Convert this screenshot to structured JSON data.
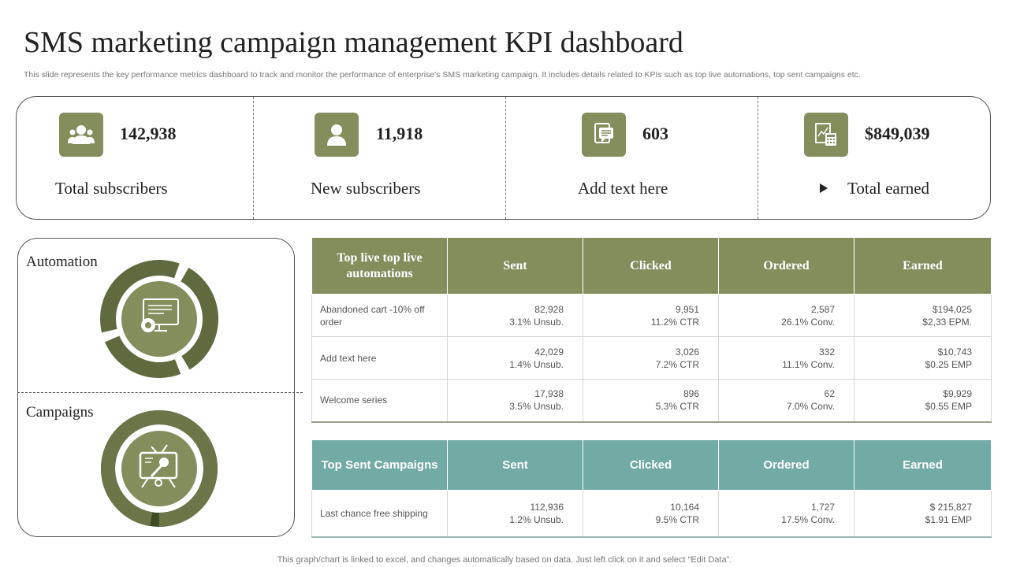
{
  "header": {
    "title": "SMS marketing campaign management KPI dashboard",
    "subtitle": "This slide represents the key performance metrics dashboard to track and monitor the performance of enterprise's SMS marketing campaign. It includes details related to KPIs such as top live automations, top sent campaigns etc."
  },
  "kpis": [
    {
      "icon": "users-icon",
      "value": "142,938",
      "label": "Total subscribers"
    },
    {
      "icon": "user-icon",
      "value": "11,918",
      "label": "New subscribers"
    },
    {
      "icon": "sms-document-icon",
      "value": "603",
      "label": "Add text here"
    },
    {
      "icon": "calculator-icon",
      "value": "$849,039",
      "label": "Total earned"
    }
  ],
  "panels": {
    "automation_label": "Automation",
    "campaigns_label": "Campaigns",
    "automation_icon": "monitor-gear-icon",
    "campaigns_icon": "tv-microphone-icon"
  },
  "automations_table": {
    "headers": [
      "Top live top live automations",
      "Sent",
      "Clicked",
      "Ordered",
      "Earned"
    ],
    "rows": [
      {
        "name": "Abandoned cart -10% off order",
        "sent": [
          "82,928",
          "3.1% Unsub."
        ],
        "clicked": [
          "9,951",
          "11.2% CTR"
        ],
        "ordered": [
          "2,587",
          "26.1% Conv."
        ],
        "earned": [
          "$194,025",
          "$2,33 EPM."
        ]
      },
      {
        "name": "Add text here",
        "sent": [
          "42,029",
          "1.4% Unsub."
        ],
        "clicked": [
          "3,026",
          "7.2% CTR"
        ],
        "ordered": [
          "332",
          "11.1% Conv."
        ],
        "earned": [
          "$10,743",
          "$0.25 EMP"
        ]
      },
      {
        "name": "Welcome series",
        "sent": [
          "17,938",
          "3.5% Unsub."
        ],
        "clicked": [
          "896",
          "5.3% CTR"
        ],
        "ordered": [
          "62",
          "7.0% Conv."
        ],
        "earned": [
          "$9,929",
          "$0.55 EMP"
        ]
      }
    ]
  },
  "campaigns_table": {
    "headers": [
      "Top Sent Campaigns",
      "Sent",
      "Clicked",
      "Ordered",
      "Earned"
    ],
    "rows": [
      {
        "name": "Last chance free shipping",
        "sent": [
          "112,936",
          "1.2% Unsub."
        ],
        "clicked": [
          "10,164",
          "9.5% CTR"
        ],
        "ordered": [
          "1,727",
          "17.5% Conv."
        ],
        "earned": [
          "$ 215,827",
          "$1.91 EMP"
        ]
      }
    ]
  },
  "footer": "This graph/chart is linked to excel,  and changes automatically based on data. Just left click on it and select “Edit Data”.",
  "colors": {
    "olive": "#848e5d",
    "olive_dark": "#5f6a3f",
    "olive_darker": "#3f4a28",
    "teal": "#72aaa5"
  }
}
